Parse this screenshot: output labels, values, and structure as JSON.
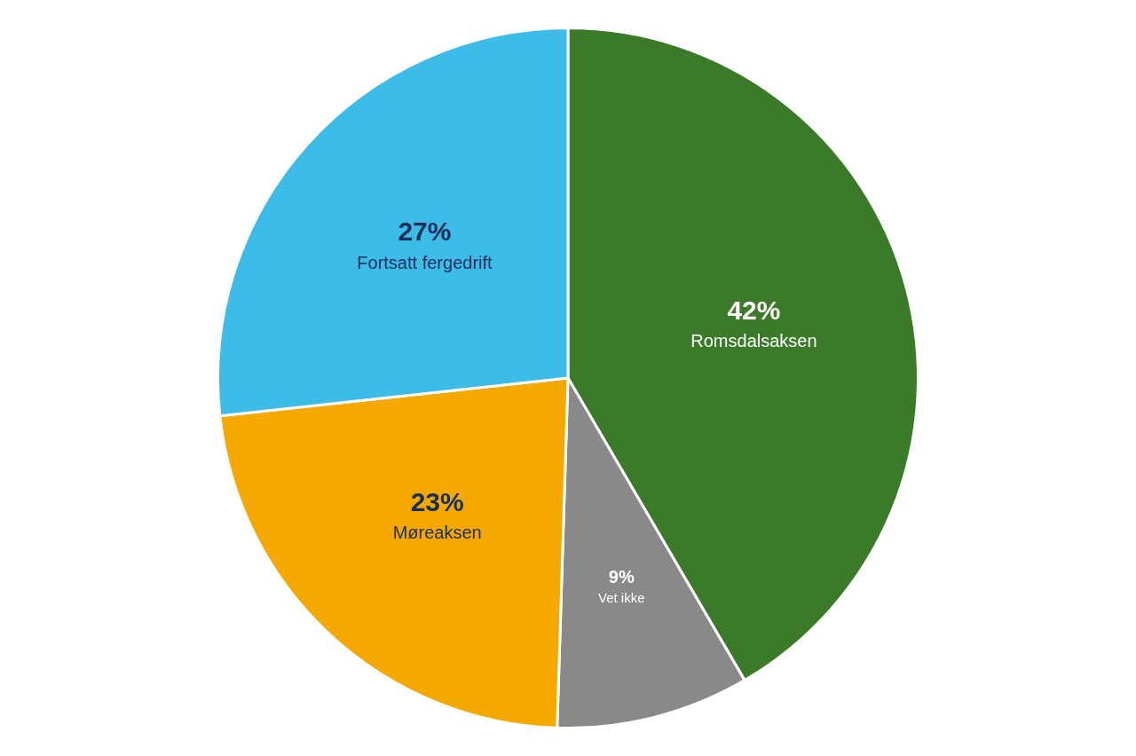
{
  "chart_data": {
    "type": "pie",
    "categories": [
      "Romsdalsaksen",
      "Vet ikke",
      "Møreaksen",
      "Fortsatt fergedrift"
    ],
    "values": [
      42,
      9,
      23,
      27
    ],
    "value_labels": [
      "42%",
      "9%",
      "23%",
      "27%"
    ],
    "colors": [
      "#3a7a28",
      "#898989",
      "#f5a800",
      "#3dbce8"
    ],
    "data_labels": true,
    "legend": false
  }
}
